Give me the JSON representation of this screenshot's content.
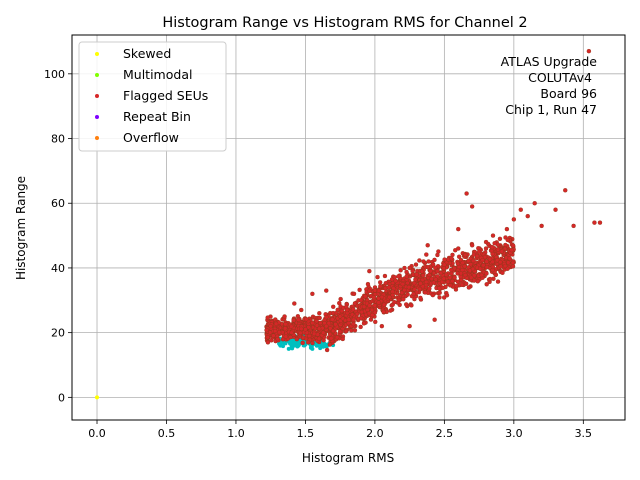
{
  "chart_data": {
    "type": "scatter",
    "title": "Histogram Range vs Histogram RMS for Channel 2",
    "xlabel": "Histogram RMS",
    "ylabel": "Histogram Range",
    "xlim": [
      -0.18,
      3.8
    ],
    "ylim": [
      -7,
      112
    ],
    "xticks": [
      0.0,
      0.5,
      1.0,
      1.5,
      2.0,
      2.5,
      3.0,
      3.5
    ],
    "xtick_labels": [
      "0.0",
      "0.5",
      "1.0",
      "1.5",
      "2.0",
      "2.5",
      "3.0",
      "3.5"
    ],
    "yticks": [
      0,
      20,
      40,
      60,
      80,
      100
    ],
    "ytick_labels": [
      "0",
      "20",
      "40",
      "60",
      "80",
      "100"
    ],
    "grid": true,
    "legend_position": "top-left",
    "annotation": [
      "ATLAS Upgrade",
      "COLUTAv4",
      "Board 96",
      "Chip 1, Run 47"
    ],
    "series": [
      {
        "name": "Skewed",
        "color": "#ffff00",
        "points": [
          [
            0.0,
            0.0
          ]
        ]
      },
      {
        "name": "Multimodal",
        "color": "#80ff00",
        "points": []
      },
      {
        "name": "Flagged SEUs",
        "color": "#d62728",
        "points": [
          [
            1.25,
            22
          ],
          [
            1.3,
            18
          ],
          [
            1.35,
            25
          ],
          [
            1.4,
            20
          ],
          [
            1.45,
            24
          ],
          [
            1.5,
            21
          ],
          [
            1.55,
            23
          ],
          [
            1.6,
            26
          ],
          [
            1.65,
            22
          ],
          [
            1.7,
            28
          ],
          [
            1.75,
            25
          ],
          [
            1.8,
            27
          ],
          [
            1.85,
            32
          ],
          [
            1.9,
            30
          ],
          [
            1.95,
            35
          ],
          [
            2.0,
            33
          ],
          [
            2.05,
            31
          ],
          [
            2.1,
            34
          ],
          [
            2.15,
            36
          ],
          [
            2.2,
            35
          ],
          [
            2.25,
            40
          ],
          [
            2.3,
            38
          ],
          [
            2.35,
            42
          ],
          [
            2.4,
            39
          ],
          [
            2.45,
            44
          ],
          [
            2.5,
            41
          ],
          [
            2.55,
            43
          ],
          [
            2.6,
            46
          ],
          [
            2.65,
            44
          ],
          [
            2.7,
            47
          ],
          [
            2.75,
            45
          ],
          [
            2.8,
            48
          ],
          [
            2.85,
            50
          ],
          [
            2.9,
            49
          ],
          [
            2.95,
            52
          ],
          [
            3.0,
            55
          ],
          [
            3.05,
            58
          ],
          [
            3.1,
            56
          ],
          [
            3.15,
            60
          ],
          [
            3.2,
            53
          ],
          [
            3.3,
            58
          ],
          [
            3.37,
            64
          ],
          [
            3.43,
            53
          ],
          [
            3.54,
            107
          ],
          [
            3.58,
            54
          ],
          [
            3.62,
            54
          ],
          [
            2.66,
            63
          ],
          [
            2.7,
            59
          ],
          [
            1.42,
            29
          ],
          [
            1.55,
            32
          ],
          [
            1.96,
            39
          ],
          [
            2.25,
            22
          ],
          [
            1.23,
            17
          ],
          [
            1.52,
            17
          ],
          [
            2.43,
            24
          ],
          [
            1.47,
            27
          ],
          [
            1.65,
            33
          ],
          [
            2.05,
            22
          ],
          [
            2.38,
            47
          ],
          [
            2.6,
            52
          ]
        ]
      },
      {
        "name": "Repeat Bin",
        "color": "#7f00ff",
        "points": []
      },
      {
        "name": "Overflow",
        "color": "#ff7f0e",
        "points": []
      }
    ],
    "unlabeled_points": {
      "color": "#00bfbf",
      "points": [
        [
          1.32,
          16
        ],
        [
          1.38,
          15
        ],
        [
          1.45,
          16
        ],
        [
          1.55,
          15
        ],
        [
          1.6,
          17
        ],
        [
          1.68,
          17
        ],
        [
          1.42,
          17
        ]
      ]
    }
  }
}
